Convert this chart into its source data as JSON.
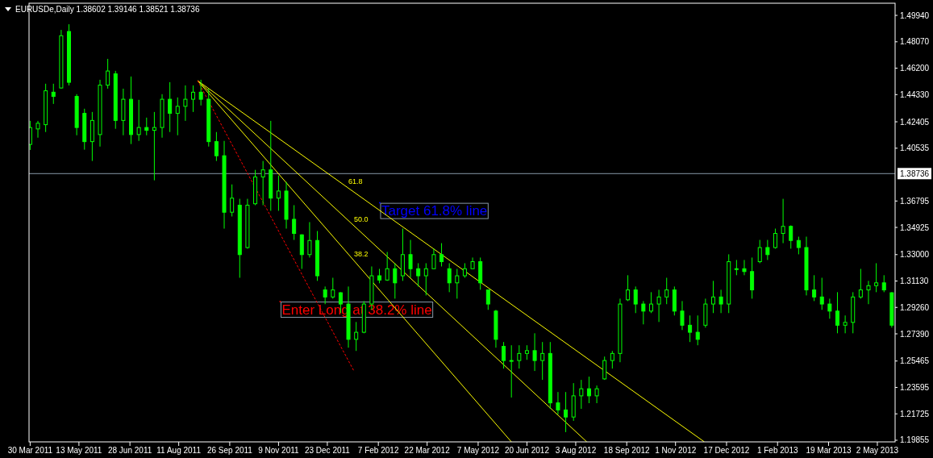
{
  "chart_data": {
    "type": "candlestick",
    "title": "EURUSDe,Daily  1.38602 1.39146 1.38521 1.38736",
    "color": "#00ff00",
    "x": [
      "2011-03-30",
      "2011-04-06",
      "2011-04-13",
      "2011-04-20",
      "2011-04-27",
      "2011-05-04",
      "2011-05-11",
      "2011-05-18",
      "2011-05-25",
      "2011-06-01",
      "2011-06-08",
      "2011-06-15",
      "2011-06-22",
      "2011-06-29",
      "2011-07-06",
      "2011-07-13",
      "2011-07-20",
      "2011-07-27",
      "2011-08-03",
      "2011-08-10",
      "2011-08-17",
      "2011-08-24",
      "2011-08-31",
      "2011-09-07",
      "2011-09-14",
      "2011-09-21",
      "2011-09-28",
      "2011-10-05",
      "2011-10-12",
      "2011-10-19",
      "2011-10-26",
      "2011-11-02",
      "2011-11-09",
      "2011-11-16",
      "2011-11-23",
      "2011-11-30",
      "2011-12-07",
      "2011-12-14",
      "2011-12-21",
      "2011-12-28",
      "2012-01-04",
      "2012-01-11",
      "2012-01-18",
      "2012-01-25",
      "2012-02-01",
      "2012-02-08",
      "2012-02-15",
      "2012-02-22",
      "2012-02-29",
      "2012-03-07",
      "2012-03-14",
      "2012-03-21",
      "2012-03-28",
      "2012-04-04",
      "2012-04-11",
      "2012-04-18",
      "2012-04-25",
      "2012-05-02",
      "2012-05-09",
      "2012-05-16",
      "2012-05-23",
      "2012-05-30",
      "2012-06-06",
      "2012-06-13",
      "2012-06-20",
      "2012-06-27",
      "2012-07-04",
      "2012-07-11",
      "2012-07-18",
      "2012-07-25",
      "2012-08-01",
      "2012-08-08",
      "2012-08-15",
      "2012-08-22",
      "2012-08-29",
      "2012-09-05",
      "2012-09-12",
      "2012-09-19",
      "2012-09-26",
      "2012-10-03",
      "2012-10-10",
      "2012-10-17",
      "2012-10-24",
      "2012-10-31",
      "2012-11-07",
      "2012-11-14",
      "2012-11-21",
      "2012-11-28",
      "2012-12-05",
      "2012-12-12",
      "2012-12-19",
      "2012-12-26",
      "2013-01-02",
      "2013-01-09",
      "2013-01-16",
      "2013-01-23",
      "2013-01-30",
      "2013-02-06",
      "2013-02-13",
      "2013-02-20",
      "2013-02-27",
      "2013-03-06",
      "2013-03-13",
      "2013-03-20",
      "2013-03-27",
      "2013-04-03",
      "2013-04-10",
      "2013-04-17",
      "2013-04-24",
      "2013-05-01",
      "2013-05-08",
      "2013-05-15"
    ],
    "ohlc": [
      [
        1.408,
        1.4247,
        1.4041,
        1.42
      ],
      [
        1.419,
        1.4247,
        1.4128,
        1.423
      ],
      [
        1.422,
        1.451,
        1.4168,
        1.446
      ],
      [
        1.445,
        1.451,
        1.4367,
        1.442
      ],
      [
        1.448,
        1.4891,
        1.4475,
        1.485
      ],
      [
        1.488,
        1.4931,
        1.4498,
        1.452
      ],
      [
        1.442,
        1.4436,
        1.4145,
        1.42
      ],
      [
        1.43,
        1.4333,
        1.4043,
        1.41
      ],
      [
        1.41,
        1.431,
        1.3963,
        1.425
      ],
      [
        1.415,
        1.4538,
        1.4065,
        1.45
      ],
      [
        1.45,
        1.4686,
        1.4475,
        1.46
      ],
      [
        1.458,
        1.4601,
        1.4191,
        1.425
      ],
      [
        1.425,
        1.4475,
        1.4145,
        1.44
      ],
      [
        1.44,
        1.4561,
        1.4083,
        1.415
      ],
      [
        1.415,
        1.4396,
        1.4105,
        1.42
      ],
      [
        1.42,
        1.427,
        1.4145,
        1.418
      ],
      [
        1.418,
        1.431,
        1.3826,
        1.42
      ],
      [
        1.42,
        1.4436,
        1.4128,
        1.44
      ],
      [
        1.44,
        1.4521,
        1.4168,
        1.43
      ],
      [
        1.43,
        1.4413,
        1.4145,
        1.435
      ],
      [
        1.435,
        1.4498,
        1.4247,
        1.44
      ],
      [
        1.44,
        1.4498,
        1.431,
        1.445
      ],
      [
        1.445,
        1.4538,
        1.4356,
        1.44
      ],
      [
        1.44,
        1.4475,
        1.4065,
        1.41
      ],
      [
        1.41,
        1.4168,
        1.3963,
        1.4
      ],
      [
        1.4,
        1.4105,
        1.3484,
        1.36
      ],
      [
        1.36,
        1.3797,
        1.357,
        1.37
      ],
      [
        1.365,
        1.3695,
        1.3136,
        1.33
      ],
      [
        1.335,
        1.3695,
        1.3342,
        1.365
      ],
      [
        1.366,
        1.39,
        1.365,
        1.385
      ],
      [
        1.385,
        1.3963,
        1.365,
        1.39
      ],
      [
        1.39,
        1.4247,
        1.361,
        1.37
      ],
      [
        1.37,
        1.386,
        1.361,
        1.375
      ],
      [
        1.375,
        1.3815,
        1.3484,
        1.355
      ],
      [
        1.355,
        1.365,
        1.3404,
        1.345
      ],
      [
        1.344,
        1.3444,
        1.3199,
        1.33
      ],
      [
        1.33,
        1.353,
        1.3279,
        1.34
      ],
      [
        1.34,
        1.3467,
        1.3114,
        1.315
      ],
      [
        1.305,
        1.3074,
        1.2949,
        1.3
      ],
      [
        1.3,
        1.3136,
        1.2988,
        1.305
      ],
      [
        1.303,
        1.3034,
        1.2886,
        1.295
      ],
      [
        1.295,
        1.3074,
        1.2641,
        1.27
      ],
      [
        1.27,
        1.2823,
        1.2618,
        1.275
      ],
      [
        1.275,
        1.2971,
        1.2743,
        1.295
      ],
      [
        1.295,
        1.3216,
        1.2909,
        1.315
      ],
      [
        1.315,
        1.3199,
        1.3097,
        1.312
      ],
      [
        1.312,
        1.3319,
        1.3114,
        1.32
      ],
      [
        1.32,
        1.3239,
        1.2988,
        1.31
      ],
      [
        1.315,
        1.3484,
        1.3114,
        1.33
      ],
      [
        1.33,
        1.3404,
        1.3136,
        1.32
      ],
      [
        1.32,
        1.3239,
        1.3074,
        1.315
      ],
      [
        1.315,
        1.3239,
        1.3011,
        1.32
      ],
      [
        1.32,
        1.3342,
        1.3199,
        1.33
      ],
      [
        1.33,
        1.3381,
        1.3216,
        1.325
      ],
      [
        1.32,
        1.3239,
        1.3034,
        1.31
      ],
      [
        1.31,
        1.3199,
        1.2988,
        1.315
      ],
      [
        1.315,
        1.3239,
        1.3136,
        1.32
      ],
      [
        1.32,
        1.3279,
        1.3199,
        1.325
      ],
      [
        1.325,
        1.3279,
        1.3051,
        1.31
      ],
      [
        1.305,
        1.3051,
        1.2909,
        1.295
      ],
      [
        1.29,
        1.2909,
        1.2641,
        1.27
      ],
      [
        1.265,
        1.2681,
        1.2493,
        1.255
      ],
      [
        1.255,
        1.2658,
        1.2288,
        1.255
      ],
      [
        1.255,
        1.2658,
        1.2493,
        1.26
      ],
      [
        1.26,
        1.2658,
        1.2555,
        1.262
      ],
      [
        1.262,
        1.2743,
        1.2476,
        1.255
      ],
      [
        1.255,
        1.2681,
        1.2413,
        1.26
      ],
      [
        1.26,
        1.2681,
        1.2208,
        1.225
      ],
      [
        1.225,
        1.2327,
        1.2168,
        1.22
      ],
      [
        1.22,
        1.2327,
        1.2043,
        1.215
      ],
      [
        1.215,
        1.239,
        1.2123,
        1.23
      ],
      [
        1.23,
        1.2413,
        1.2208,
        1.235
      ],
      [
        1.235,
        1.2436,
        1.2248,
        1.23
      ],
      [
        1.23,
        1.2373,
        1.2248,
        1.235
      ],
      [
        1.242,
        1.2578,
        1.2413,
        1.255
      ],
      [
        1.255,
        1.2618,
        1.2493,
        1.26
      ],
      [
        1.26,
        1.2988,
        1.2538,
        1.295
      ],
      [
        1.298,
        1.3154,
        1.2971,
        1.305
      ],
      [
        1.305,
        1.3074,
        1.2886,
        1.295
      ],
      [
        1.295,
        1.2971,
        1.2806,
        1.29
      ],
      [
        1.29,
        1.3034,
        1.2886,
        1.295
      ],
      [
        1.295,
        1.3051,
        1.2823,
        1.3
      ],
      [
        1.3,
        1.3136,
        1.2949,
        1.305
      ],
      [
        1.305,
        1.3074,
        1.2869,
        1.29
      ],
      [
        1.29,
        1.2971,
        1.2766,
        1.28
      ],
      [
        1.28,
        1.2869,
        1.2681,
        1.275
      ],
      [
        1.275,
        1.2869,
        1.2658,
        1.27
      ],
      [
        1.28,
        1.2988,
        1.2783,
        1.295
      ],
      [
        1.295,
        1.3114,
        1.2886,
        1.3
      ],
      [
        1.3,
        1.3051,
        1.2886,
        1.295
      ],
      [
        1.295,
        1.3302,
        1.2886,
        1.325
      ],
      [
        1.32,
        1.3262,
        1.3154,
        1.32
      ],
      [
        1.32,
        1.3262,
        1.3154,
        1.318
      ],
      [
        1.318,
        1.3279,
        1.2988,
        1.305
      ],
      [
        1.325,
        1.3404,
        1.3239,
        1.335
      ],
      [
        1.335,
        1.3404,
        1.3262,
        1.33
      ],
      [
        1.335,
        1.3484,
        1.3342,
        1.345
      ],
      [
        1.345,
        1.3695,
        1.3381,
        1.35
      ],
      [
        1.35,
        1.3507,
        1.3342,
        1.34
      ],
      [
        1.34,
        1.3427,
        1.3302,
        1.335
      ],
      [
        1.335,
        1.3427,
        1.3011,
        1.305
      ],
      [
        1.305,
        1.3154,
        1.2971,
        1.3
      ],
      [
        1.3,
        1.3136,
        1.2909,
        1.295
      ],
      [
        1.295,
        1.2988,
        1.2846,
        1.29
      ],
      [
        1.29,
        1.3034,
        1.2743,
        1.28
      ],
      [
        1.28,
        1.2869,
        1.2743,
        1.282
      ],
      [
        1.282,
        1.3034,
        1.2743,
        1.3
      ],
      [
        1.3,
        1.3199,
        1.2988,
        1.305
      ],
      [
        1.305,
        1.3114,
        1.2949,
        1.308
      ],
      [
        1.308,
        1.3239,
        1.3034,
        1.31
      ],
      [
        1.31,
        1.3154,
        1.3034,
        1.305
      ],
      [
        1.303,
        1.3034,
        1.2783,
        1.28
      ]
    ],
    "series": [
      {
        "type": "line",
        "color": "#ff0000",
        "line_style": "dashed",
        "x": [
          "2011-08-28",
          "2012-01-16"
        ],
        "values": [
          1.4532,
          1.2476
        ]
      },
      {
        "type": "line",
        "color": "#ffff00",
        "line_style": "solid",
        "x": [
          "2011-08-28",
          "2012-06-06"
        ],
        "values": [
          1.4532,
          1.1974
        ]
      },
      {
        "type": "line",
        "color": "#ffff00",
        "line_style": "solid",
        "x": [
          "2011-08-28",
          "2012-08-13"
        ],
        "values": [
          1.4532,
          1.1974
        ]
      },
      {
        "type": "line",
        "color": "#ffff00",
        "line_style": "solid",
        "x": [
          "2011-08-28",
          "2012-11-27"
        ],
        "values": [
          1.4532,
          1.1974
        ]
      }
    ],
    "ref_lines": [
      {
        "axis": "y",
        "value": 1.38736,
        "label": "1.38736",
        "color": "#8898a8"
      }
    ],
    "annotations": [
      {
        "text": "61.8",
        "x": "2012-01-11",
        "y": 1.3771
      },
      {
        "text": "50.0",
        "x": "2012-01-16",
        "y": 1.3504
      },
      {
        "text": "38.2",
        "x": "2012-01-16",
        "y": 1.3258
      },
      "Target 61.8% line",
      "Enter Long at 38.2% line"
    ],
    "xlim": [
      "2011-03-29",
      "2013-05-18"
    ],
    "xticks": [
      {
        "value": "2011-03-30",
        "label": "30 Mar 2011"
      },
      {
        "value": "2011-05-13",
        "label": "13 May 2011"
      },
      {
        "value": "2011-06-28",
        "label": "28 Jun 2011"
      },
      {
        "value": "2011-08-11",
        "label": "11 Aug 2011"
      },
      {
        "value": "2011-09-26",
        "label": "26 Sep 2011"
      },
      {
        "value": "2011-11-09",
        "label": "9 Nov 2011"
      },
      {
        "value": "2011-12-23",
        "label": "23 Dec 2011"
      },
      {
        "value": "2012-02-07",
        "label": "7 Feb 2012"
      },
      {
        "value": "2012-03-22",
        "label": "22 Mar 2012"
      },
      {
        "value": "2012-05-07",
        "label": "7 May 2012"
      },
      {
        "value": "2012-06-20",
        "label": "20 Jun 2012"
      },
      {
        "value": "2012-08-03",
        "label": "3 Aug 2012"
      },
      {
        "value": "2012-09-18",
        "label": "18 Sep 2012"
      },
      {
        "value": "2012-11-01",
        "label": "1 Nov 2012"
      },
      {
        "value": "2012-12-17",
        "label": "17 Dec 2012"
      },
      {
        "value": "2013-02-01",
        "label": "1 Feb 2013"
      },
      {
        "value": "2013-03-19",
        "label": "19 Mar 2013"
      },
      {
        "value": "2013-05-02",
        "label": "2 May 2013"
      }
    ],
    "ylim": [
      1.1974,
      1.508
    ],
    "yticks": [
      {
        "value": 1.19855,
        "label": "1.19855"
      },
      {
        "value": 1.21725,
        "label": "1.21725"
      },
      {
        "value": 1.23595,
        "label": "1.23595"
      },
      {
        "value": 1.25465,
        "label": "1.25465"
      },
      {
        "value": 1.2739,
        "label": "1.27390"
      },
      {
        "value": 1.2926,
        "label": "1.29260"
      },
      {
        "value": 1.3113,
        "label": "1.31130"
      },
      {
        "value": 1.33,
        "label": "1.33000"
      },
      {
        "value": 1.34925,
        "label": "1.34925"
      },
      {
        "value": 1.36795,
        "label": "1.36795"
      },
      {
        "value": 1.40535,
        "label": "1.40535"
      },
      {
        "value": 1.42405,
        "label": "1.42405"
      },
      {
        "value": 1.4433,
        "label": "1.44330"
      },
      {
        "value": 1.462,
        "label": "1.46200"
      },
      {
        "value": 1.4807,
        "label": "1.48070"
      },
      {
        "value": 1.4994,
        "label": "1.49940"
      }
    ],
    "grid": false
  }
}
